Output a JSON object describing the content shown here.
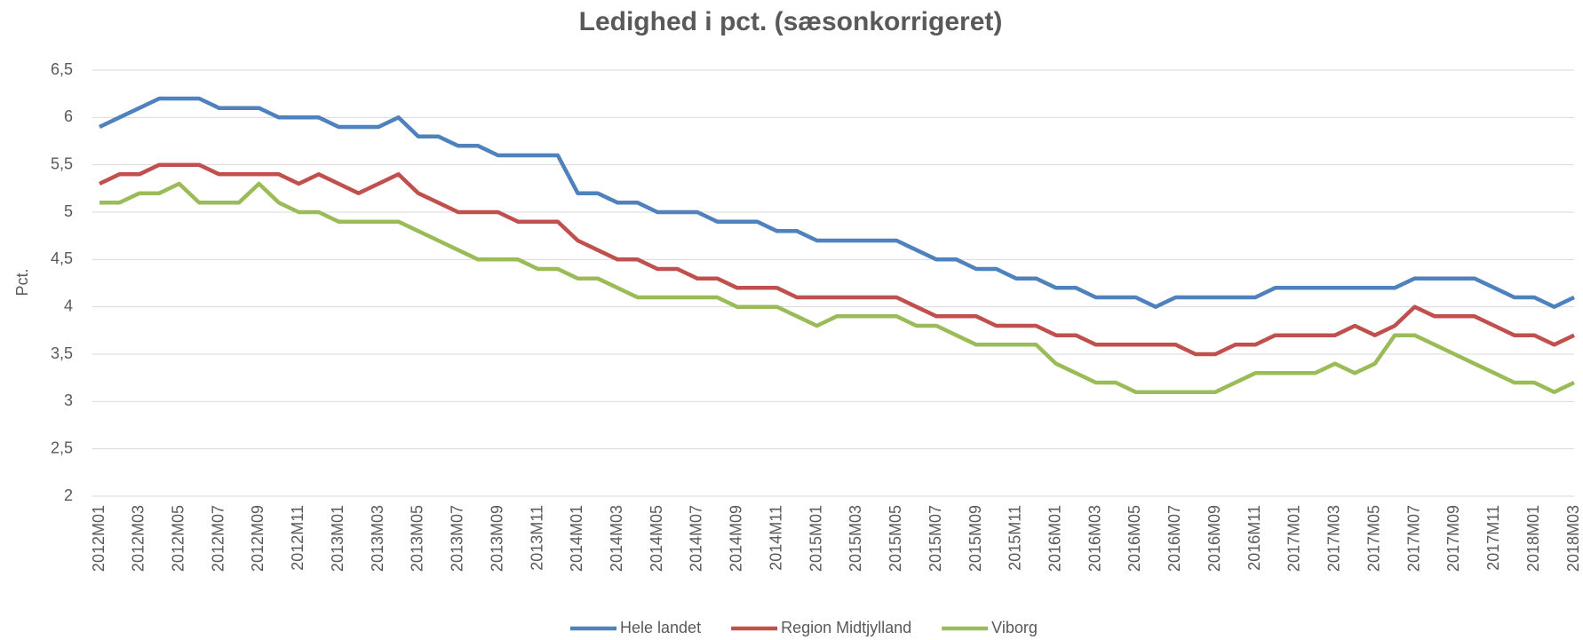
{
  "chart_data": {
    "type": "line",
    "title": "Ledighed i pct. (sæsonkorrigeret)",
    "y_label": "Pct.",
    "categories": [
      "2012M01",
      null,
      "2012M03",
      null,
      "2012M05",
      null,
      "2012M07",
      null,
      "2012M09",
      null,
      "2012M11",
      null,
      "2013M01",
      null,
      "2013M03",
      null,
      "2013M05",
      null,
      "2013M07",
      null,
      "2013M09",
      null,
      "2013M11",
      null,
      "2014M01",
      null,
      "2014M03",
      null,
      "2014M05",
      null,
      "2014M07",
      null,
      "2014M09",
      null,
      "2014M11",
      null,
      "2015M01",
      null,
      "2015M03",
      null,
      "2015M05",
      null,
      "2015M07",
      null,
      "2015M09",
      null,
      "2015M11",
      null,
      "2016M01",
      null,
      "2016M03",
      null,
      "2016M05",
      null,
      "2016M07",
      null,
      "2016M09",
      null,
      "2016M11",
      null,
      "2017M01",
      null,
      "2017M03",
      null,
      "2017M05",
      null,
      "2017M07",
      null,
      "2017M09",
      null,
      "2017M11",
      null,
      "2018M01",
      null,
      "2018M03"
    ],
    "series": [
      {
        "name": "Hele landet",
        "color": "#4f81bd",
        "values": [
          5.9,
          6.0,
          6.1,
          6.2,
          6.2,
          6.2,
          6.1,
          6.1,
          6.1,
          6.0,
          6.0,
          6.0,
          5.9,
          5.9,
          5.9,
          6.0,
          5.8,
          5.8,
          5.7,
          5.7,
          5.6,
          5.6,
          5.6,
          5.6,
          5.2,
          5.2,
          5.1,
          5.1,
          5.0,
          5.0,
          5.0,
          4.9,
          4.9,
          4.9,
          4.8,
          4.8,
          4.7,
          4.7,
          4.7,
          4.7,
          4.7,
          4.6,
          4.5,
          4.5,
          4.4,
          4.4,
          4.3,
          4.3,
          4.2,
          4.2,
          4.1,
          4.1,
          4.1,
          4.0,
          4.1,
          4.1,
          4.1,
          4.1,
          4.1,
          4.2,
          4.2,
          4.2,
          4.2,
          4.2,
          4.2,
          4.2,
          4.3,
          4.3,
          4.3,
          4.3,
          4.2,
          4.1,
          4.1,
          4.0,
          4.1
        ]
      },
      {
        "name": "Region Midtjylland",
        "color": "#c0504d",
        "values": [
          5.3,
          5.4,
          5.4,
          5.5,
          5.5,
          5.5,
          5.4,
          5.4,
          5.4,
          5.4,
          5.3,
          5.4,
          5.3,
          5.2,
          5.3,
          5.4,
          5.2,
          5.1,
          5.0,
          5.0,
          5.0,
          4.9,
          4.9,
          4.9,
          4.7,
          4.6,
          4.5,
          4.5,
          4.4,
          4.4,
          4.3,
          4.3,
          4.2,
          4.2,
          4.2,
          4.1,
          4.1,
          4.1,
          4.1,
          4.1,
          4.1,
          4.0,
          3.9,
          3.9,
          3.9,
          3.8,
          3.8,
          3.8,
          3.7,
          3.7,
          3.6,
          3.6,
          3.6,
          3.6,
          3.6,
          3.5,
          3.5,
          3.6,
          3.6,
          3.7,
          3.7,
          3.7,
          3.7,
          3.8,
          3.7,
          3.8,
          4.0,
          3.9,
          3.9,
          3.9,
          3.8,
          3.7,
          3.7,
          3.6,
          3.7
        ]
      },
      {
        "name": "Viborg",
        "color": "#9bbb59",
        "values": [
          5.1,
          5.1,
          5.2,
          5.2,
          5.3,
          5.1,
          5.1,
          5.1,
          5.3,
          5.1,
          5.0,
          5.0,
          4.9,
          4.9,
          4.9,
          4.9,
          4.8,
          4.7,
          4.6,
          4.5,
          4.5,
          4.5,
          4.4,
          4.4,
          4.3,
          4.3,
          4.2,
          4.1,
          4.1,
          4.1,
          4.1,
          4.1,
          4.0,
          4.0,
          4.0,
          3.9,
          3.8,
          3.9,
          3.9,
          3.9,
          3.9,
          3.8,
          3.8,
          3.7,
          3.6,
          3.6,
          3.6,
          3.6,
          3.4,
          3.3,
          3.2,
          3.2,
          3.1,
          3.1,
          3.1,
          3.1,
          3.1,
          3.2,
          3.3,
          3.3,
          3.3,
          3.3,
          3.4,
          3.3,
          3.4,
          3.7,
          3.7,
          3.6,
          3.5,
          3.4,
          3.3,
          3.2,
          3.2,
          3.1,
          3.2
        ]
      }
    ],
    "ylim": [
      2,
      6.5
    ],
    "yticks": [
      2,
      {
        "value": 2.5,
        "label": "2,5"
      },
      3,
      {
        "value": 3.5,
        "label": "3,5"
      },
      4,
      {
        "value": 4.5,
        "label": "4,5"
      },
      5,
      {
        "value": 5.5,
        "label": "5,5"
      },
      6,
      {
        "value": 6.5,
        "label": "6,5"
      }
    ],
    "grid": true,
    "legend": "bottom"
  }
}
